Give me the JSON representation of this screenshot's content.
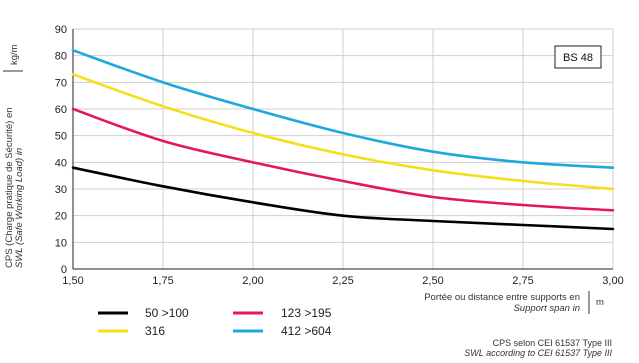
{
  "chart_data": {
    "type": "line",
    "badge": "BS 48",
    "ylabel": {
      "main": "CPS (Charge pratique de Sécurité) en",
      "italic": "SWL (Safe Working Load) in",
      "unit": "kg/m"
    },
    "xlabel": {
      "main": "Portée ou distance entre supports en",
      "italic": "Support span in",
      "unit": "m"
    },
    "footnote": {
      "line1": "CPS selon CEI 61537 Type III",
      "line2": "SWL according to CEI 61537 Type III"
    },
    "xlim": [
      1.5,
      3.0
    ],
    "ylim": [
      0,
      90
    ],
    "x_ticks": [
      1.5,
      1.75,
      2.0,
      2.25,
      2.5,
      2.75,
      3.0
    ],
    "x_tick_labels": [
      "1,50",
      "1,75",
      "2,00",
      "2,25",
      "2,50",
      "2,75",
      "3,00"
    ],
    "y_ticks": [
      0,
      10,
      20,
      30,
      40,
      50,
      60,
      70,
      80,
      90
    ],
    "y_tick_labels": [
      "0",
      "10",
      "20",
      "30",
      "40",
      "50",
      "60",
      "70",
      "80",
      "90"
    ],
    "grid": true,
    "x": [
      1.5,
      1.75,
      2.0,
      2.25,
      2.5,
      2.75,
      3.0
    ],
    "series": [
      {
        "name": "50 >100",
        "color": "#000000",
        "values": [
          38,
          31,
          25,
          20,
          18,
          16.5,
          15
        ]
      },
      {
        "name": "316",
        "color": "#f2e01c",
        "values": [
          73,
          61,
          51,
          43,
          37,
          33,
          30
        ]
      },
      {
        "name": "123 >195",
        "color": "#e5175c",
        "values": [
          60,
          48,
          40,
          33,
          27,
          24,
          22
        ]
      },
      {
        "name": "412 >604",
        "color": "#1fa8dc",
        "values": [
          82,
          70,
          60,
          51,
          44,
          40,
          38
        ]
      }
    ]
  }
}
